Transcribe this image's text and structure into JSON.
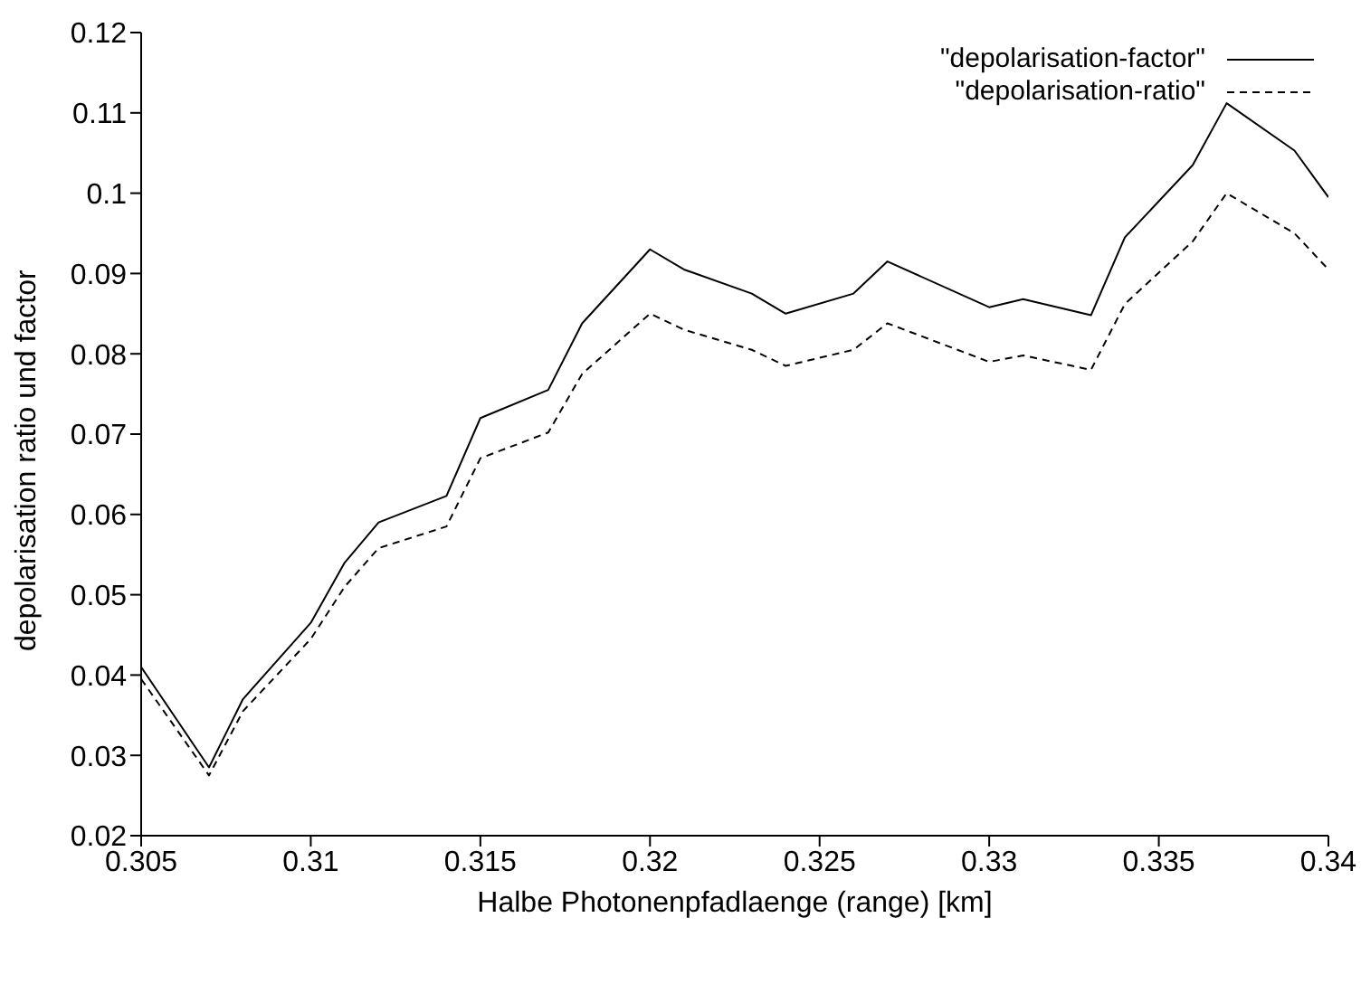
{
  "chart_data": {
    "type": "line",
    "xlabel": "Halbe Photonenpfadlaenge (range) [km]",
    "ylabel": "depolarisation ratio und factor",
    "x": [
      0.305,
      0.307,
      0.308,
      0.31,
      0.311,
      0.312,
      0.314,
      0.315,
      0.317,
      0.318,
      0.32,
      0.321,
      0.323,
      0.324,
      0.326,
      0.327,
      0.33,
      0.331,
      0.333,
      0.334,
      0.336,
      0.337,
      0.339,
      0.34
    ],
    "series": [
      {
        "name": "\"depolarisation-factor\"",
        "color": "#000000",
        "line_style": "solid",
        "values": [
          0.041,
          0.0285,
          0.037,
          0.0465,
          0.054,
          0.059,
          0.0623,
          0.072,
          0.0755,
          0.0838,
          0.093,
          0.0905,
          0.0875,
          0.085,
          0.0875,
          0.0915,
          0.0858,
          0.0868,
          0.0848,
          0.0945,
          0.1035,
          0.1112,
          0.1053,
          0.0995
        ]
      },
      {
        "name": "\"depolarisation-ratio\"",
        "color": "#000000",
        "line_style": "dashed",
        "values": [
          0.0395,
          0.0275,
          0.0355,
          0.0445,
          0.051,
          0.0558,
          0.0585,
          0.067,
          0.0702,
          0.0775,
          0.085,
          0.083,
          0.0805,
          0.0785,
          0.0805,
          0.0838,
          0.079,
          0.0798,
          0.078,
          0.0862,
          0.094,
          0.1,
          0.095,
          0.0905
        ]
      }
    ],
    "xlim": [
      0.305,
      0.34
    ],
    "xticks": [
      0.305,
      0.31,
      0.315,
      0.32,
      0.325,
      0.33,
      0.335,
      0.34
    ],
    "ylim": [
      0.02,
      0.12
    ],
    "yticks": [
      0.02,
      0.03,
      0.04,
      0.05,
      0.06,
      0.07,
      0.08,
      0.09,
      0.1,
      0.11,
      0.12
    ],
    "grid": false,
    "legend": "top right",
    "marker": "none"
  }
}
